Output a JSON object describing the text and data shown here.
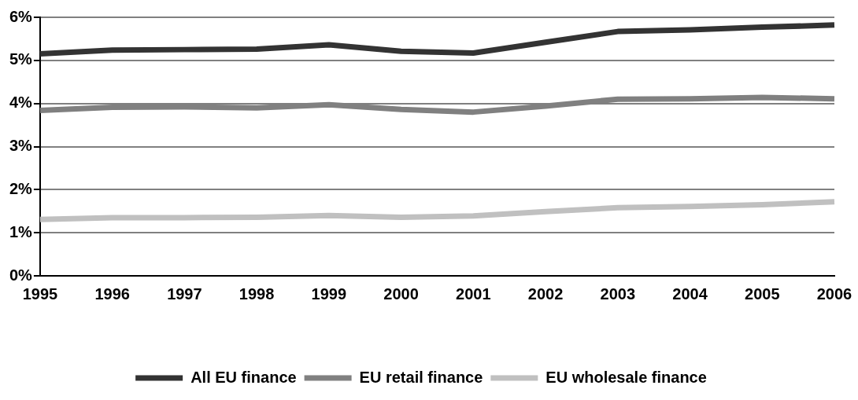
{
  "chart_data": {
    "type": "line",
    "categories": [
      "1995",
      "1996",
      "1997",
      "1998",
      "1999",
      "2000",
      "2001",
      "2002",
      "2003",
      "2004",
      "2005",
      "2006"
    ],
    "series": [
      {
        "name": "All EU finance",
        "color": "#333333",
        "values": [
          5.15,
          5.24,
          5.25,
          5.26,
          5.36,
          5.21,
          5.17,
          5.42,
          5.67,
          5.71,
          5.77,
          5.82
        ]
      },
      {
        "name": "EU retail finance",
        "color": "#808080",
        "values": [
          3.84,
          3.91,
          3.92,
          3.9,
          3.97,
          3.86,
          3.8,
          3.94,
          4.1,
          4.11,
          4.14,
          4.11
        ]
      },
      {
        "name": "EU wholesale finance",
        "color": "#c0c0c0",
        "values": [
          1.31,
          1.35,
          1.35,
          1.36,
          1.4,
          1.36,
          1.39,
          1.49,
          1.58,
          1.61,
          1.65,
          1.72
        ]
      }
    ],
    "ylim": [
      0,
      6
    ],
    "yticks": [
      {
        "value": 0,
        "label": "0%"
      },
      {
        "value": 1,
        "label": "1%"
      },
      {
        "value": 2,
        "label": "2%"
      },
      {
        "value": 3,
        "label": "3%"
      },
      {
        "value": 4,
        "label": "4%"
      },
      {
        "value": 5,
        "label": "5%"
      },
      {
        "value": 6,
        "label": "6%"
      }
    ],
    "grid": "y",
    "legend": "bottom",
    "marker": "none",
    "line_style": "solid"
  }
}
